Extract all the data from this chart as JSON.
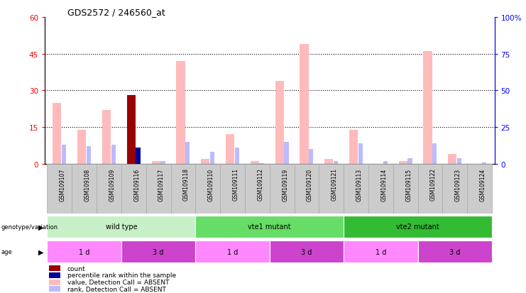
{
  "title": "GDS2572 / 246560_at",
  "samples": [
    "GSM109107",
    "GSM109108",
    "GSM109109",
    "GSM109116",
    "GSM109117",
    "GSM109118",
    "GSM109110",
    "GSM109111",
    "GSM109112",
    "GSM109119",
    "GSM109120",
    "GSM109121",
    "GSM109113",
    "GSM109114",
    "GSM109115",
    "GSM109122",
    "GSM109123",
    "GSM109124"
  ],
  "value_absent": [
    25,
    14,
    22,
    0,
    1,
    42,
    2,
    12,
    1,
    34,
    49,
    2,
    14,
    0,
    1,
    46,
    4,
    0
  ],
  "rank_absent": [
    13,
    12,
    13,
    0,
    2,
    15,
    8,
    11,
    0.5,
    15,
    10,
    2,
    14,
    2,
    4,
    14,
    4,
    1
  ],
  "count": [
    0,
    0,
    0,
    28,
    0,
    0,
    0,
    0,
    0,
    0,
    0,
    0,
    0,
    0,
    0,
    0,
    0,
    0
  ],
  "pct_rank": [
    0,
    0,
    0,
    11,
    0,
    0,
    0,
    0,
    0,
    0,
    0,
    0,
    0,
    0,
    0,
    0,
    0,
    0
  ],
  "ylim_left": [
    0,
    60
  ],
  "ylim_right": [
    0,
    100
  ],
  "yticks_left": [
    0,
    15,
    30,
    45,
    60
  ],
  "yticks_right": [
    0,
    25,
    50,
    75,
    100
  ],
  "groups": [
    {
      "label": "wild type",
      "start": 0,
      "end": 6,
      "color": "#c8f0c8"
    },
    {
      "label": "vte1 mutant",
      "start": 6,
      "end": 12,
      "color": "#66dd66"
    },
    {
      "label": "vte2 mutant",
      "start": 12,
      "end": 18,
      "color": "#33bb33"
    }
  ],
  "ages": [
    {
      "label": "1 d",
      "start": 0,
      "end": 3,
      "color": "#ff88ff"
    },
    {
      "label": "3 d",
      "start": 3,
      "end": 6,
      "color": "#cc44cc"
    },
    {
      "label": "1 d",
      "start": 6,
      "end": 9,
      "color": "#ff88ff"
    },
    {
      "label": "3 d",
      "start": 9,
      "end": 12,
      "color": "#cc44cc"
    },
    {
      "label": "1 d",
      "start": 12,
      "end": 15,
      "color": "#ff88ff"
    },
    {
      "label": "3 d",
      "start": 15,
      "end": 18,
      "color": "#cc44cc"
    }
  ],
  "color_value_absent": "#ffbbbb",
  "color_rank_absent": "#bbbbff",
  "color_count": "#990000",
  "color_pct_rank": "#000099",
  "legend_items": [
    {
      "label": "count",
      "color": "#990000"
    },
    {
      "label": "percentile rank within the sample",
      "color": "#000099"
    },
    {
      "label": "value, Detection Call = ABSENT",
      "color": "#ffbbbb"
    },
    {
      "label": "rank, Detection Call = ABSENT",
      "color": "#bbbbff"
    }
  ],
  "xlabel_bg": "#cccccc",
  "left_label_color": "#555555"
}
